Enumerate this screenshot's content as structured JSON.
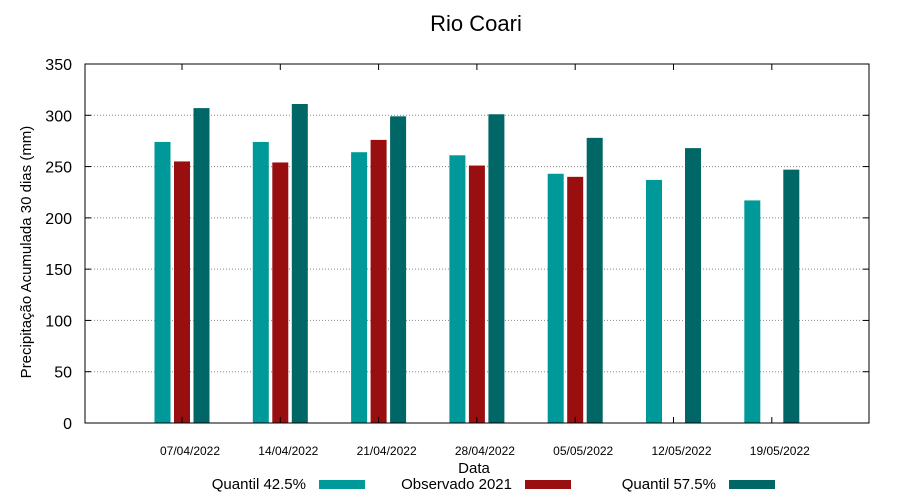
{
  "chart_data": {
    "type": "bar",
    "title": "Rio Coari",
    "xlabel": "Data",
    "ylabel": "Precipitação Acumulada 30 dias (mm)",
    "ylim": [
      0,
      350
    ],
    "yticks": [
      0,
      50,
      100,
      150,
      200,
      250,
      300,
      350
    ],
    "grid": true,
    "legend_position": "bottom",
    "categories": [
      "07/04/2022",
      "14/04/2022",
      "21/04/2022",
      "28/04/2022",
      "05/05/2022",
      "12/05/2022",
      "19/05/2022"
    ],
    "series": [
      {
        "name": "Quantil 42.5%",
        "color": "#009999",
        "values": [
          274,
          274,
          264,
          261,
          243,
          237,
          217
        ]
      },
      {
        "name": "Observado 2021",
        "color": "#990f0f",
        "values": [
          255,
          254,
          276,
          251,
          240,
          null,
          null
        ]
      },
      {
        "name": "Quantil 57.5%",
        "color": "#006666",
        "values": [
          307,
          311,
          299,
          301,
          278,
          268,
          247
        ]
      }
    ]
  }
}
